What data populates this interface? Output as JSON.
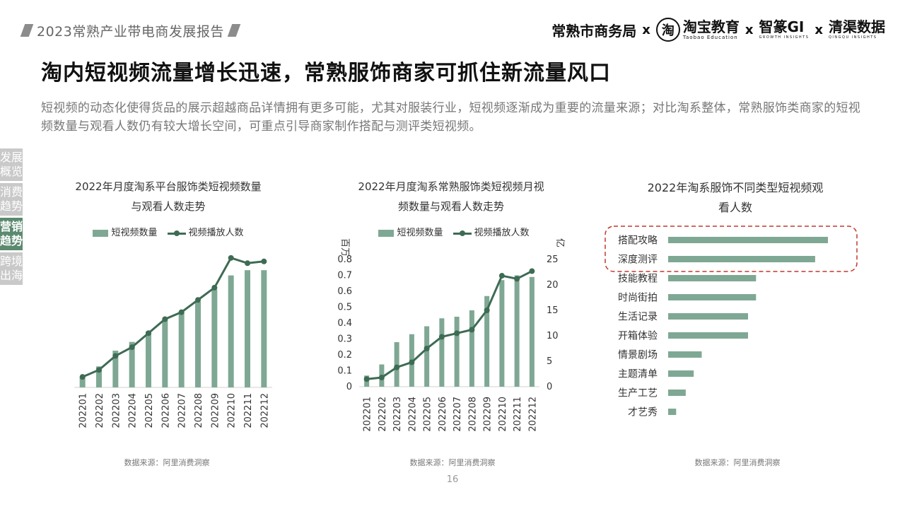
{
  "header": {
    "report_title": "2023常熟产业带电商发展报告",
    "partners": [
      {
        "name": "常熟市商务局"
      },
      {
        "name": "淘宝教育",
        "logo_char": "淘",
        "sub": "Taobao Education"
      },
      {
        "name": "智篆GI",
        "sub": "GROWTH INSIGHTS"
      },
      {
        "name": "清渠数据",
        "sub": "QINGQU INSIGHTS"
      }
    ],
    "separator": "x"
  },
  "headline": "淘内短视频流量增长迅速，常熟服饰商家可抓住新流量风口",
  "description": "短视频的动态化使得货品的展示超越商品详情拥有更多可能，尤其对服装行业，短视频逐渐成为重要的流量来源；对比淘系整体，常熟服饰类商家的短视频数量与观看人数仍有较大增长空间，可重点引导商家制作搭配与测评类短视频。",
  "sidebar": {
    "items": [
      {
        "label": "发展概览",
        "active": false
      },
      {
        "label": "消费趋势",
        "active": false
      },
      {
        "label": "营销趋势",
        "active": true
      },
      {
        "label": "跨境出海",
        "active": false
      }
    ]
  },
  "colors": {
    "bar": "#7fa894",
    "line": "#3e6b54",
    "highlight": "#c0392b",
    "active_tab": "#5b8a6f"
  },
  "chart_data": [
    {
      "type": "bar+line",
      "title_lines": [
        "2022年月度淘系平台服饰类短视频数量",
        "与观看人数走势"
      ],
      "legend": [
        "短视频数量",
        "视频播放人数"
      ],
      "categories": [
        "202201",
        "202202",
        "202203",
        "202204",
        "202205",
        "202206",
        "202207",
        "202208",
        "202209",
        "202210",
        "202211",
        "202212"
      ],
      "series": [
        {
          "name": "短视频数量",
          "type": "bar",
          "values": [
            0.06,
            0.12,
            0.21,
            0.26,
            0.32,
            0.39,
            0.43,
            0.49,
            0.56,
            0.64,
            0.67,
            0.67
          ]
        },
        {
          "name": "视频播放人数",
          "type": "line",
          "values": [
            0.06,
            0.1,
            0.18,
            0.23,
            0.31,
            0.39,
            0.43,
            0.5,
            0.57,
            0.74,
            0.71,
            0.72
          ]
        }
      ],
      "ylim": [
        0,
        0.8
      ],
      "source": "数据来源：阿里消费洞察"
    },
    {
      "type": "bar+line",
      "title_lines": [
        "2022年月度淘系常熟服饰类短视频月视",
        "频数量与观看人数走势"
      ],
      "legend": [
        "短视频数量",
        "视频播放人数"
      ],
      "y_left_label": "百万",
      "y_right_label": "亿",
      "y_left_ticks": [
        0,
        0.1,
        0.2,
        0.3,
        0.4,
        0.5,
        0.6,
        0.7,
        0.8
      ],
      "y_right_ticks": [
        0,
        5,
        10,
        15,
        20,
        25
      ],
      "categories": [
        "202201",
        "202202",
        "202203",
        "202204",
        "202205",
        "202206",
        "202207",
        "202208",
        "202209",
        "202210",
        "202211",
        "202212"
      ],
      "series": [
        {
          "name": "短视频数量",
          "type": "bar",
          "axis": "left",
          "values": [
            0.07,
            0.14,
            0.28,
            0.33,
            0.38,
            0.43,
            0.44,
            0.48,
            0.57,
            0.67,
            0.7,
            0.69
          ]
        },
        {
          "name": "视频播放人数",
          "type": "line",
          "axis": "right",
          "values": [
            1.5,
            1.8,
            3.8,
            4.8,
            7.5,
            9.8,
            10.5,
            11.2,
            15.0,
            21.8,
            21.2,
            22.7
          ]
        }
      ],
      "ylim_left": [
        0,
        0.8
      ],
      "ylim_right": [
        0,
        25
      ],
      "source": "数据来源：阿里消费洞察"
    },
    {
      "type": "bar",
      "orientation": "horizontal",
      "title_lines": [
        "2022年淘系服饰不同类型短视频观",
        "看人数"
      ],
      "categories": [
        "搭配攻略",
        "深度测评",
        "技能教程",
        "时尚街拍",
        "生活记录",
        "开箱体验",
        "情景剧场",
        "主题清单",
        "生产工艺",
        "才艺秀"
      ],
      "values": [
        100,
        92,
        55,
        55,
        50,
        50,
        21,
        16,
        11,
        5
      ],
      "highlighted": [
        "搭配攻略",
        "深度测评"
      ],
      "source": "数据来源：阿里消费洞察"
    }
  ],
  "page_number": "16"
}
